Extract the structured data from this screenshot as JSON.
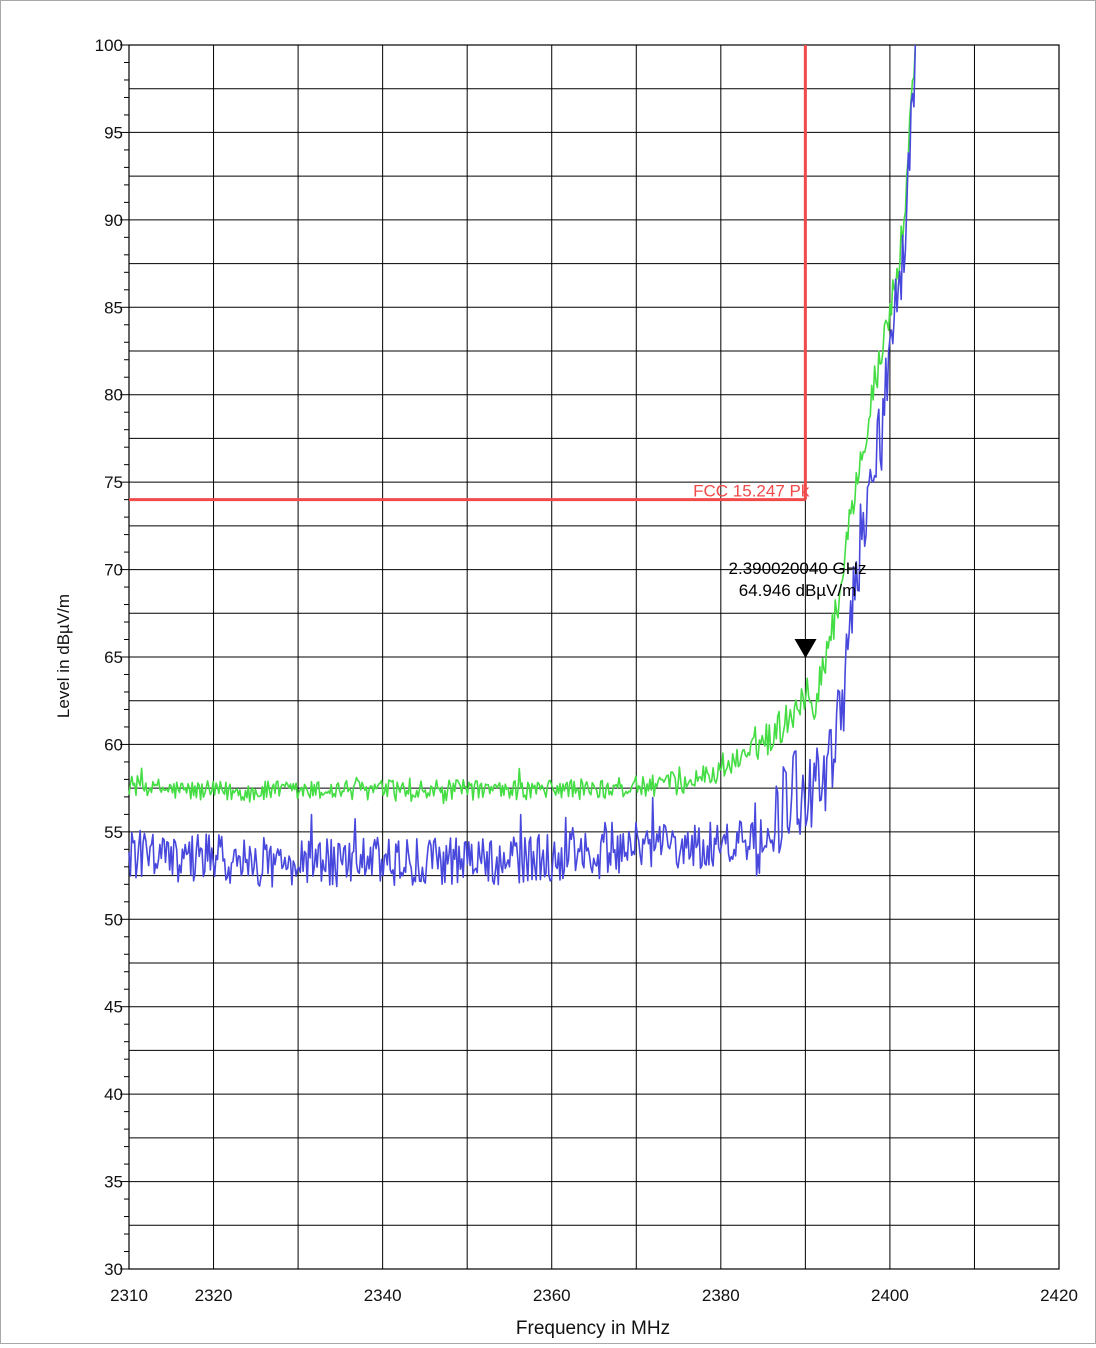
{
  "chart_data": {
    "type": "line",
    "xlabel": "Frequency in MHz",
    "ylabel": "Level in dBµV/m",
    "xlim": [
      2310,
      2420
    ],
    "ylim": [
      30,
      100
    ],
    "x_ticks": [
      "2310",
      "2320",
      "2340",
      "2360",
      "2380",
      "2400",
      "2420"
    ],
    "y_ticks": [
      "30",
      "35",
      "40",
      "45",
      "50",
      "55",
      "60",
      "65",
      "70",
      "75",
      "80",
      "85",
      "90",
      "95",
      "100"
    ],
    "grid": true,
    "limit_line": {
      "label": "FCC 15.247 Pk",
      "level": 74,
      "x_end": 2390,
      "color": "#f04a4a"
    },
    "marker": {
      "frequency_label": "2.390020040 GHz",
      "level_label": "64.946 dBµV/m",
      "x": 2390.02,
      "y": 64.946
    },
    "series": [
      {
        "color": "#44dd44",
        "points": [
          [
            2310,
            57.7
          ],
          [
            2315,
            57.4
          ],
          [
            2320,
            57.3
          ],
          [
            2325,
            57.3
          ],
          [
            2330,
            57.3
          ],
          [
            2335,
            57.4
          ],
          [
            2340,
            57.4
          ],
          [
            2345,
            57.3
          ],
          [
            2350,
            57.4
          ],
          [
            2355,
            57.3
          ],
          [
            2360,
            57.5
          ],
          [
            2365,
            57.4
          ],
          [
            2370,
            57.6
          ],
          [
            2375,
            57.7
          ],
          [
            2378,
            58.2
          ],
          [
            2380,
            58.4
          ],
          [
            2382,
            59.2
          ],
          [
            2384,
            60.0
          ],
          [
            2386,
            60.5
          ],
          [
            2388,
            61.5
          ],
          [
            2390,
            63.0
          ],
          [
            2391,
            62.2
          ],
          [
            2392,
            64.5
          ],
          [
            2393,
            66.0
          ],
          [
            2394,
            68.5
          ],
          [
            2395,
            72.0
          ],
          [
            2396,
            75.0
          ],
          [
            2397,
            77.5
          ],
          [
            2398,
            80.5
          ],
          [
            2399,
            82.0
          ],
          [
            2400,
            85.0
          ],
          [
            2401,
            87.0
          ],
          [
            2402,
            92.0
          ],
          [
            2403,
            100.0
          ]
        ]
      },
      {
        "color": "#4848dd",
        "points": [
          [
            2310,
            53.8
          ],
          [
            2315,
            53.5
          ],
          [
            2320,
            53.5
          ],
          [
            2325,
            53.2
          ],
          [
            2330,
            53.3
          ],
          [
            2335,
            53.2
          ],
          [
            2340,
            53.4
          ],
          [
            2345,
            53.2
          ],
          [
            2350,
            53.5
          ],
          [
            2355,
            53.3
          ],
          [
            2360,
            53.6
          ],
          [
            2365,
            53.6
          ],
          [
            2370,
            54.3
          ],
          [
            2375,
            54.2
          ],
          [
            2380,
            54.3
          ],
          [
            2384,
            54.4
          ],
          [
            2386,
            55.5
          ],
          [
            2388,
            56.5
          ],
          [
            2389,
            57.5
          ],
          [
            2390,
            56.5
          ],
          [
            2391,
            57.2
          ],
          [
            2392,
            57.5
          ],
          [
            2393,
            59.0
          ],
          [
            2394,
            61.0
          ],
          [
            2395,
            65.0
          ],
          [
            2396,
            70.0
          ],
          [
            2397,
            73.0
          ],
          [
            2398,
            75.0
          ],
          [
            2399,
            78.0
          ],
          [
            2400,
            82.0
          ],
          [
            2401,
            85.5
          ],
          [
            2402,
            90.0
          ],
          [
            2403,
            100.0
          ]
        ]
      }
    ]
  }
}
